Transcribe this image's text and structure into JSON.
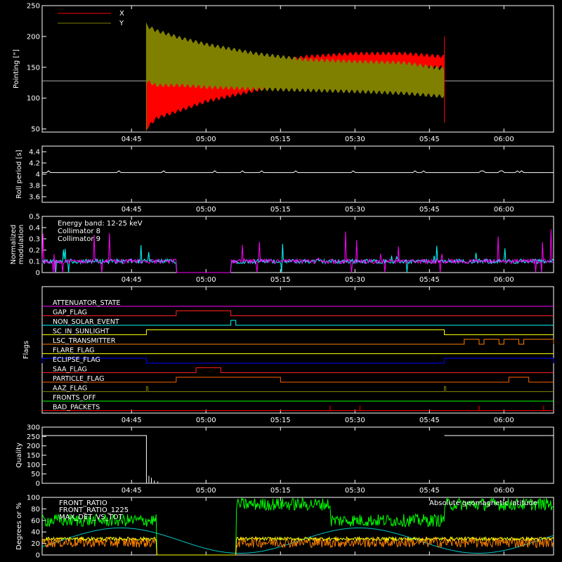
{
  "time_axis": {
    "tmin": "04:27",
    "tmax": "06:10",
    "tick_labels": [
      "04:45",
      "05:00",
      "05:15",
      "05:30",
      "05:45",
      "06:00"
    ]
  },
  "colors": {
    "axis": "#ffffff",
    "x_series": "#ff0000",
    "y_series": "#808000"
  },
  "chart_data": [
    {
      "type": "line",
      "name": "pointing",
      "ylabel": "Pointing [\"]",
      "ylim": [
        45,
        250
      ],
      "yticks": [
        50,
        100,
        150,
        200,
        250
      ],
      "legend": {
        "placement": "top-left"
      },
      "series": [
        {
          "name": "X",
          "color": "#ff0000",
          "baseline": 128,
          "envelope_time": [
            "04:48",
            "04:50",
            "04:55",
            "05:00",
            "05:10",
            "05:20",
            "05:30",
            "05:40",
            "05:48"
          ],
          "envelope_low": [
            48,
            65,
            78,
            92,
            110,
            128,
            140,
            145,
            148
          ],
          "envelope_high": [
            148,
            142,
            140,
            145,
            155,
            170,
            175,
            175,
            170
          ]
        },
        {
          "name": "Y",
          "color": "#808000",
          "baseline": 128,
          "envelope_time": [
            "04:48",
            "04:50",
            "04:55",
            "05:00",
            "05:10",
            "05:20",
            "05:30",
            "05:40",
            "05:48"
          ],
          "envelope_low": [
            125,
            118,
            118,
            115,
            112,
            110,
            108,
            105,
            100
          ],
          "envelope_high": [
            220,
            212,
            200,
            190,
            175,
            165,
            162,
            160,
            150
          ]
        }
      ]
    },
    {
      "type": "line",
      "name": "roll-period",
      "ylabel": "Roll period [s]",
      "ylim": [
        3.5,
        4.5
      ],
      "yticks": [
        3.6,
        3.8,
        4.0,
        4.2,
        4.4
      ],
      "series": [
        {
          "color": "#ffffff",
          "value": 4.03
        }
      ]
    },
    {
      "type": "line",
      "name": "modulation",
      "ylabel": "Normalized modulation",
      "ylim": [
        0,
        0.5
      ],
      "yticks": [
        0.0,
        0.1,
        0.2,
        0.3,
        0.4,
        0.5
      ],
      "legend": {
        "placement": "top-left",
        "entries": [
          "Energy band: 12-25 keV",
          "Collimator 8",
          "Collimator 9"
        ]
      },
      "gap": [
        "04:54",
        "05:05"
      ],
      "series": [
        {
          "name": "Collimator 8",
          "color": "#00ffff",
          "baseline": 0.1
        },
        {
          "name": "Collimator 9",
          "color": "#ff00ff",
          "baseline": 0.1
        }
      ]
    },
    {
      "type": "flags",
      "name": "flags",
      "ylabel": "Flags",
      "rows": [
        {
          "label": "ATTENUATOR_STATE",
          "color": "#ff00ff",
          "on": []
        },
        {
          "label": "GAP_FLAG",
          "color": "#ff2020",
          "on": [
            [
              "04:54",
              "05:05"
            ]
          ]
        },
        {
          "label": "NON_SOLAR_EVENT",
          "color": "#00ffff",
          "on": [
            [
              "05:05",
              "05:06"
            ]
          ]
        },
        {
          "label": "SC_IN_SUNLIGHT",
          "color": "#ffff00",
          "on": [
            [
              "04:48",
              "05:48"
            ]
          ]
        },
        {
          "label": "LSC_TRANSMITTER",
          "color": "#ff8000",
          "on": [
            [
              "05:52",
              "05:55"
            ],
            [
              "05:56",
              "05:59"
            ],
            [
              "06:00",
              "06:03"
            ],
            [
              "06:04",
              "06:10"
            ]
          ]
        },
        {
          "label": "FLARE_FLAG",
          "color": "#ffff00",
          "on": []
        },
        {
          "label": "ECLIPSE_FLAG",
          "color": "#0000ff",
          "on": [
            [
              "04:27",
              "04:48"
            ],
            [
              "05:48",
              "06:10"
            ]
          ]
        },
        {
          "label": "SAA_FLAG",
          "color": "#ff2020",
          "on": [
            [
              "04:58",
              "05:03"
            ]
          ]
        },
        {
          "label": "PARTICLE_FLAG",
          "color": "#ff6000",
          "on": [
            [
              "04:54",
              "05:15"
            ],
            [
              "06:01",
              "06:05"
            ]
          ]
        },
        {
          "label": "AAZ_FLAG",
          "color": "#808000",
          "on": [
            [
              "04:48",
              "04:48.3"
            ],
            [
              "05:48",
              "05:48.3"
            ]
          ]
        },
        {
          "label": "FRONTS_OFF",
          "color": "#00ff00",
          "on": []
        },
        {
          "label": "BAD_PACKETS",
          "color": "#ff0000",
          "on": []
        }
      ]
    },
    {
      "type": "line",
      "name": "quality",
      "ylabel": "Quality",
      "ylim": [
        0,
        300
      ],
      "yticks": [
        0,
        50,
        100,
        150,
        200,
        250,
        300
      ],
      "series": [
        {
          "color": "#ffffff",
          "segments": [
            {
              "from": "04:27",
              "to": "04:48",
              "value": 255
            },
            {
              "from": "05:48",
              "to": "06:10",
              "value": 255
            }
          ]
        }
      ]
    },
    {
      "type": "line",
      "name": "orbit",
      "ylabel": "Degrees or %",
      "ylim": [
        0,
        100
      ],
      "yticks": [
        0,
        20,
        40,
        60,
        80,
        100
      ],
      "legend": {
        "entries": [
          "FRONT_RATIO",
          "FRONT_RATIO_1225",
          "MAX_DET_VS_TOT",
          "Absolute geomagnetic latitude"
        ]
      },
      "gap": [
        "04:50",
        "05:06"
      ],
      "series": [
        {
          "name": "FRONT_RATIO",
          "color": "#00ffff"
        },
        {
          "name": "FRONT_RATIO_1225",
          "color": "#00ff00"
        },
        {
          "name": "MAX_DET_VS_TOT",
          "color": "#ff8000"
        },
        {
          "name": "Absolute geomagnetic latitude",
          "color": "#00ffff"
        }
      ]
    }
  ]
}
